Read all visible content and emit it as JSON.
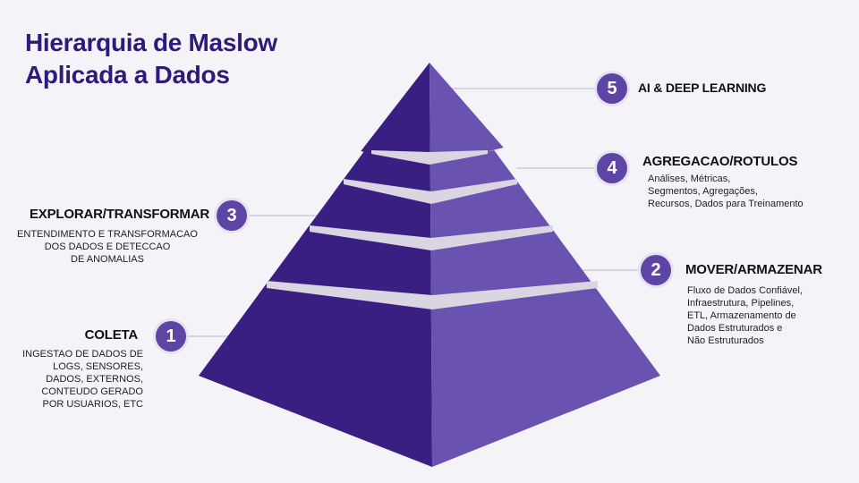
{
  "title": {
    "line1": "Hierarquia de Maslow",
    "line2": "Aplicada a Dados"
  },
  "colors": {
    "title": "#2e1a7a",
    "badge": "#5d45a6",
    "pyramid_left": "#3a1f82",
    "pyramid_right": "#6a52b0",
    "separator": "#d9d6e2"
  },
  "levels": [
    {
      "number": "1",
      "label": "COLETA",
      "description": [
        "INGESTAO DE DADOS DE",
        "LOGS, SENSORES,",
        "DADOS, EXTERNOS,",
        "CONTEUDO GERADO",
        "POR USUARIOS, ETC"
      ]
    },
    {
      "number": "2",
      "label": "MOVER/ARMAZENAR",
      "description": [
        "Fluxo de Dados Confiável,",
        "Infraestrutura,  Pipelines,",
        "ETL, Armazenamento de",
        "Dados Estruturados e",
        "Não Estruturados"
      ]
    },
    {
      "number": "3",
      "label": "EXPLORAR/TRANSFORMAR",
      "description": [
        "ENTENDIMENTO E TRANSFORMACAO",
        "DOS  DADOS E DETECCAO",
        "DE  ANOMALIAS"
      ]
    },
    {
      "number": "4",
      "label": "AGREGACAO/ROTULOS",
      "description": [
        "Análises, Métricas,",
        "Segmentos, Agregações,",
        "Recursos, Dados para Treinamento"
      ]
    },
    {
      "number": "5",
      "label": "AI & DEEP LEARNING",
      "description": []
    }
  ]
}
